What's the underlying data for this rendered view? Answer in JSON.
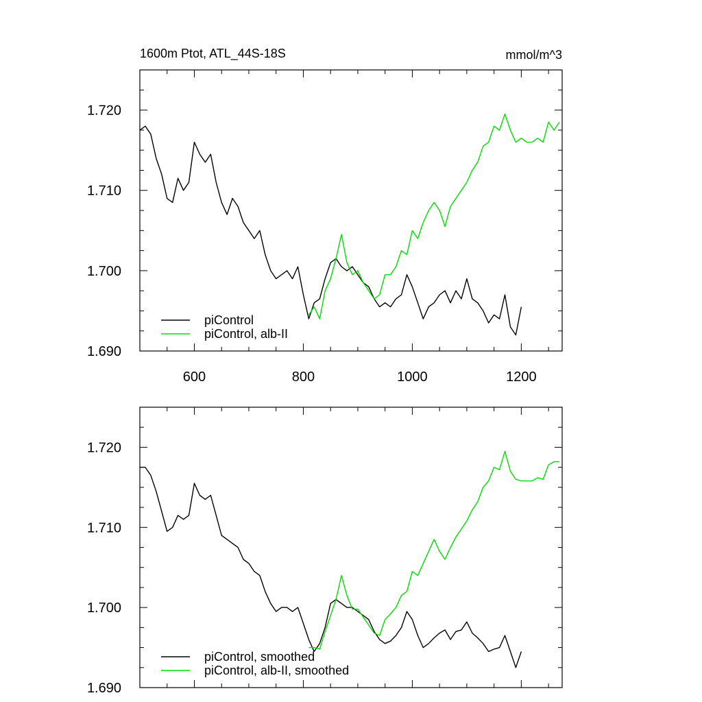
{
  "header": {
    "title": "1600m Ptot, ATL_44S-18S",
    "units": "mmol/m^3"
  },
  "chart_data": [
    {
      "type": "line",
      "title": "1600m Ptot, ATL_44S-18S",
      "units_label": "mmol/m^3",
      "xlabel": "",
      "ylabel": "",
      "xlim": [
        500,
        1275
      ],
      "ylim": [
        1.69,
        1.725
      ],
      "x_ticks": [
        600,
        800,
        1000,
        1200
      ],
      "x_tick_labels": [
        "600",
        "800",
        "1000",
        "1200"
      ],
      "y_ticks": [
        1.69,
        1.7,
        1.71,
        1.72
      ],
      "y_tick_labels": [
        "1.690",
        "1.700",
        "1.710",
        "1.720"
      ],
      "show_x_tick_labels": true,
      "grid": false,
      "legend_position": "bottom-left",
      "series": [
        {
          "name": "piControl",
          "color": "#000000",
          "x": [
            500,
            510,
            520,
            530,
            540,
            550,
            560,
            570,
            580,
            590,
            600,
            610,
            620,
            630,
            640,
            650,
            660,
            670,
            680,
            690,
            700,
            710,
            720,
            730,
            740,
            750,
            760,
            770,
            780,
            790,
            800,
            810,
            820,
            830,
            840,
            850,
            860,
            870,
            880,
            890,
            900,
            910,
            920,
            930,
            940,
            950,
            960,
            970,
            980,
            990,
            1000,
            1010,
            1020,
            1030,
            1040,
            1050,
            1060,
            1070,
            1080,
            1090,
            1100,
            1110,
            1120,
            1130,
            1140,
            1150,
            1160,
            1170,
            1180,
            1190,
            1200
          ],
          "y": [
            1.7175,
            1.718,
            1.717,
            1.714,
            1.712,
            1.709,
            1.7085,
            1.7115,
            1.71,
            1.711,
            1.716,
            1.7145,
            1.7135,
            1.7145,
            1.711,
            1.7085,
            1.707,
            1.709,
            1.708,
            1.706,
            1.705,
            1.704,
            1.705,
            1.702,
            1.7,
            1.699,
            1.6995,
            1.7,
            1.699,
            1.7005,
            1.697,
            1.694,
            1.696,
            1.6965,
            1.699,
            1.701,
            1.7015,
            1.7005,
            1.7,
            1.7005,
            1.6995,
            1.6985,
            1.698,
            1.6965,
            1.6955,
            1.696,
            1.6955,
            1.6965,
            1.697,
            1.6995,
            1.698,
            1.696,
            1.694,
            1.6955,
            1.696,
            1.697,
            1.6975,
            1.696,
            1.6975,
            1.6965,
            1.699,
            1.6965,
            1.696,
            1.695,
            1.6935,
            1.6945,
            1.694,
            1.697,
            1.693,
            1.692,
            1.6955
          ]
        },
        {
          "name": "piControl, alb-II",
          "color": "#00dd00",
          "x": [
            810,
            820,
            830,
            840,
            850,
            860,
            870,
            880,
            890,
            900,
            910,
            920,
            930,
            940,
            950,
            960,
            970,
            980,
            990,
            1000,
            1010,
            1020,
            1030,
            1040,
            1050,
            1060,
            1070,
            1080,
            1090,
            1100,
            1110,
            1120,
            1130,
            1140,
            1150,
            1160,
            1170,
            1180,
            1190,
            1200,
            1210,
            1220,
            1230,
            1240,
            1250,
            1260,
            1270
          ],
          "y": [
            1.6945,
            1.6955,
            1.694,
            1.6975,
            1.699,
            1.7015,
            1.7045,
            1.701,
            1.6995,
            1.7,
            1.6985,
            1.6975,
            1.6965,
            1.697,
            1.6995,
            1.6995,
            1.7005,
            1.7025,
            1.702,
            1.705,
            1.704,
            1.706,
            1.7075,
            1.7085,
            1.7075,
            1.7055,
            1.708,
            1.709,
            1.71,
            1.711,
            1.7125,
            1.7135,
            1.7155,
            1.716,
            1.718,
            1.7175,
            1.7195,
            1.7175,
            1.716,
            1.7165,
            1.716,
            1.716,
            1.7165,
            1.716,
            1.7185,
            1.7175,
            1.7185
          ]
        }
      ]
    },
    {
      "type": "line",
      "title": "",
      "xlabel": "",
      "ylabel": "",
      "xlim": [
        500,
        1275
      ],
      "ylim": [
        1.69,
        1.725
      ],
      "x_ticks": [
        600,
        800,
        1000,
        1200
      ],
      "y_ticks": [
        1.69,
        1.7,
        1.71,
        1.72
      ],
      "y_tick_labels": [
        "1.690",
        "1.700",
        "1.710",
        "1.720"
      ],
      "show_x_tick_labels": false,
      "grid": false,
      "legend_position": "bottom-left",
      "series": [
        {
          "name": "piControl, smoothed",
          "color": "#000000",
          "x": [
            500,
            510,
            520,
            530,
            540,
            550,
            560,
            570,
            580,
            590,
            600,
            610,
            620,
            630,
            640,
            650,
            660,
            670,
            680,
            690,
            700,
            710,
            720,
            730,
            740,
            750,
            760,
            770,
            780,
            790,
            800,
            810,
            820,
            830,
            840,
            850,
            860,
            870,
            880,
            890,
            900,
            910,
            920,
            930,
            940,
            950,
            960,
            970,
            980,
            990,
            1000,
            1010,
            1020,
            1030,
            1040,
            1050,
            1060,
            1070,
            1080,
            1090,
            1100,
            1110,
            1120,
            1130,
            1140,
            1150,
            1160,
            1170,
            1180,
            1190,
            1200
          ],
          "y": [
            1.7175,
            1.7175,
            1.7165,
            1.7145,
            1.712,
            1.7095,
            1.71,
            1.7115,
            1.711,
            1.7115,
            1.7155,
            1.714,
            1.7135,
            1.714,
            1.7115,
            1.709,
            1.7085,
            1.708,
            1.7075,
            1.706,
            1.7055,
            1.7045,
            1.704,
            1.702,
            1.7005,
            1.6995,
            1.7,
            1.7,
            1.6995,
            1.7,
            1.698,
            1.696,
            1.6945,
            1.6955,
            1.6975,
            1.7005,
            1.701,
            1.7005,
            1.7,
            1.7,
            1.6995,
            1.699,
            1.6985,
            1.697,
            1.696,
            1.6955,
            1.6958,
            1.6965,
            1.6975,
            1.6995,
            1.6985,
            1.6965,
            1.695,
            1.6955,
            1.6962,
            1.6968,
            1.6972,
            1.696,
            1.697,
            1.6972,
            1.6982,
            1.6968,
            1.6962,
            1.6955,
            1.6945,
            1.6948,
            1.695,
            1.6965,
            1.6945,
            1.6925,
            1.6945
          ]
        },
        {
          "name": "piControl, alb-II, smoothed",
          "color": "#00dd00",
          "x": [
            810,
            820,
            830,
            840,
            850,
            860,
            870,
            880,
            890,
            900,
            910,
            920,
            930,
            940,
            950,
            960,
            970,
            980,
            990,
            1000,
            1010,
            1020,
            1030,
            1040,
            1050,
            1060,
            1070,
            1080,
            1090,
            1100,
            1110,
            1120,
            1130,
            1140,
            1150,
            1160,
            1170,
            1180,
            1190,
            1200,
            1210,
            1220,
            1230,
            1240,
            1250,
            1260,
            1270
          ],
          "y": [
            1.695,
            1.695,
            1.6948,
            1.697,
            1.699,
            1.701,
            1.704,
            1.7015,
            1.6998,
            1.6998,
            1.6988,
            1.6978,
            1.6968,
            1.6965,
            1.6985,
            1.6992,
            1.7,
            1.7015,
            1.702,
            1.7045,
            1.704,
            1.7055,
            1.707,
            1.7085,
            1.707,
            1.706,
            1.7075,
            1.7088,
            1.7098,
            1.7108,
            1.7122,
            1.7132,
            1.715,
            1.7158,
            1.7175,
            1.7172,
            1.7195,
            1.717,
            1.716,
            1.7158,
            1.7158,
            1.7158,
            1.7162,
            1.716,
            1.7178,
            1.7182,
            1.7182
          ]
        }
      ]
    }
  ]
}
